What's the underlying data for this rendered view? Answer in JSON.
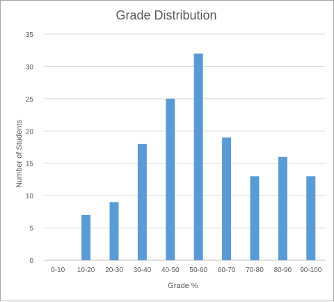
{
  "chart_data": {
    "type": "bar",
    "title": "Grade Distribution",
    "xlabel": "Grade %",
    "ylabel": "Number  of Students",
    "categories": [
      "0-10",
      "10-20",
      "20-30",
      "30-40",
      "40-50",
      "50-60",
      "60-70",
      "70-80",
      "80-90",
      "90-100"
    ],
    "values": [
      0,
      7,
      9,
      18,
      25,
      32,
      19,
      13,
      16,
      13
    ],
    "ylim": [
      0,
      35
    ],
    "yticks": [
      0,
      5,
      10,
      15,
      20,
      25,
      30,
      35
    ],
    "grid": true,
    "legend": "none",
    "colors": {
      "bar": "#5b9bd5",
      "grid": "#d9d9d9",
      "axis": "#bfbfbf"
    }
  }
}
